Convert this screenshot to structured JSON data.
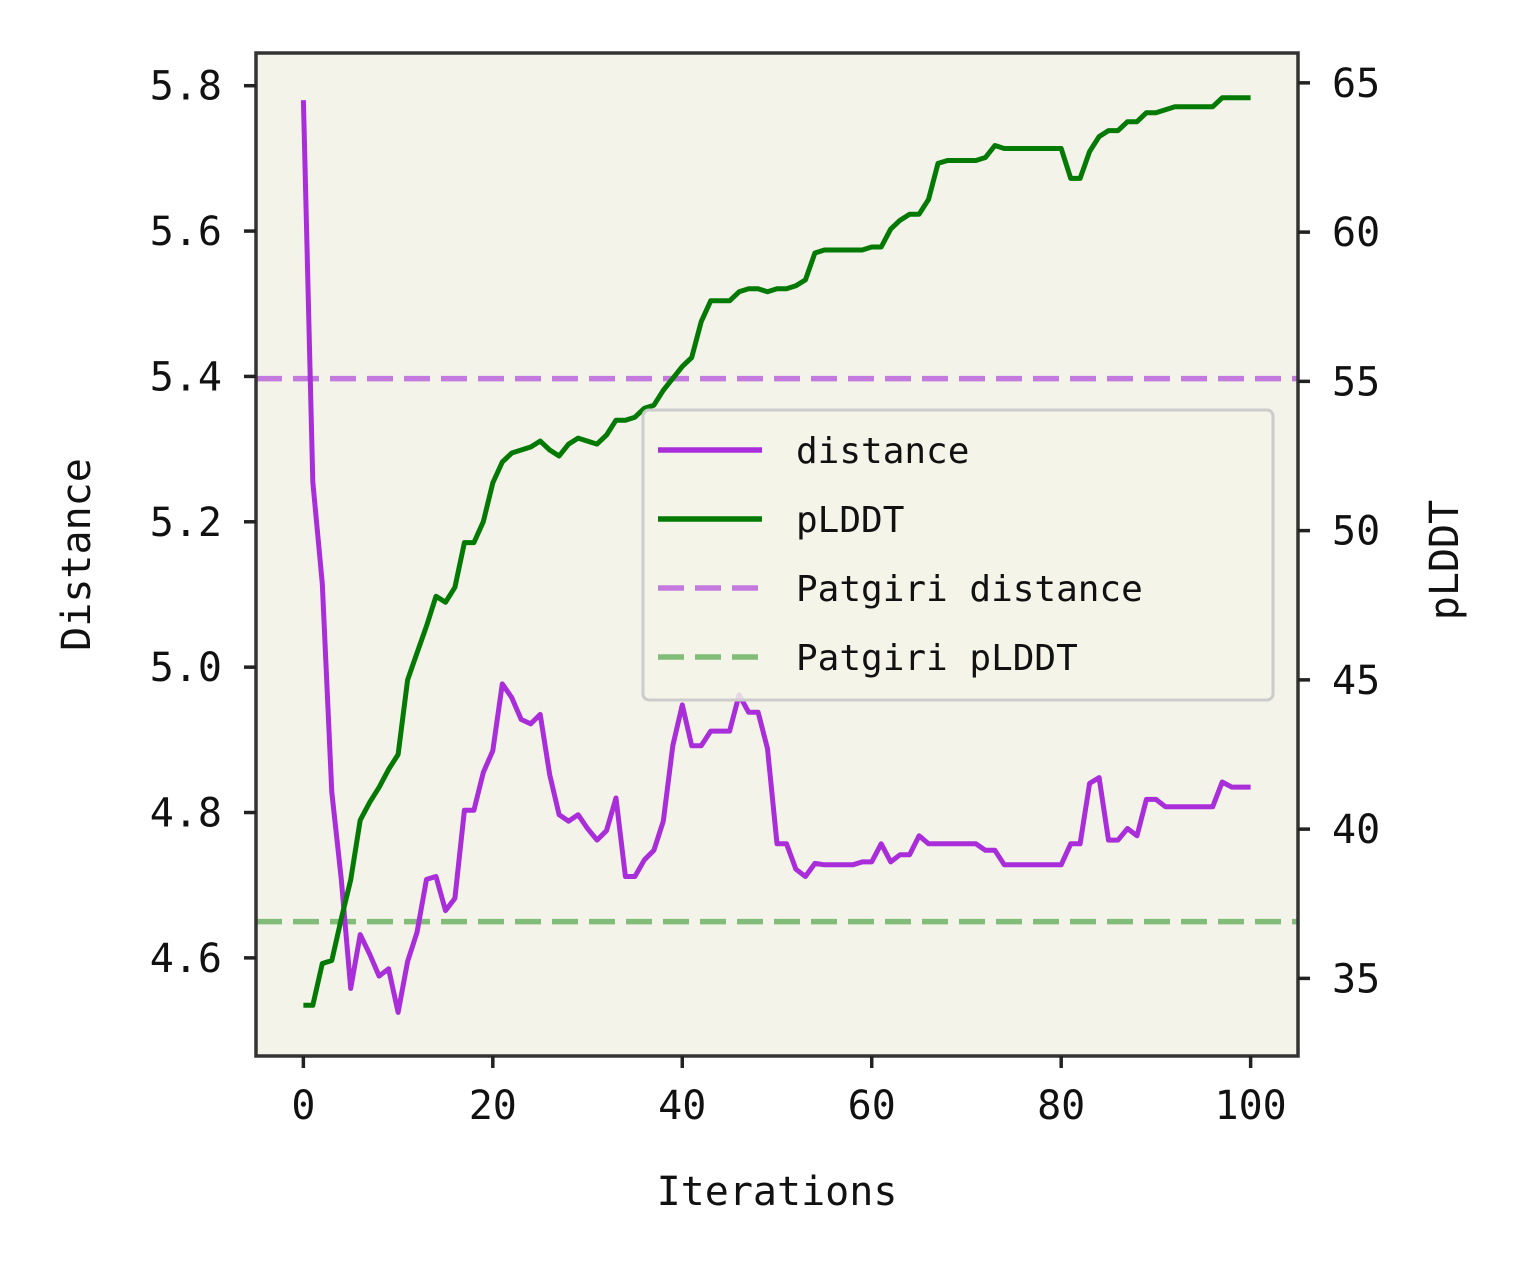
{
  "chart_data": {
    "type": "line",
    "xlabel": "Iterations",
    "ylabel_left": "Distance",
    "ylabel_right": "pLDDT",
    "xlim": [
      -5,
      105
    ],
    "ylim_left": [
      4.465,
      5.845
    ],
    "ylim_right": [
      32.4,
      66.0
    ],
    "xticks": [
      "0",
      "20",
      "40",
      "60",
      "80",
      "100"
    ],
    "yticks_left": [
      "4.6",
      "4.8",
      "5.0",
      "5.2",
      "5.4",
      "5.6",
      "5.8"
    ],
    "yticks_right": [
      "35",
      "40",
      "45",
      "50",
      "55",
      "60",
      "65"
    ],
    "grid": false,
    "legend_position": "center-right",
    "plot_background": "#f3f3e9",
    "series": [
      {
        "name": "distance",
        "axis": "left",
        "color": "#a92ed9",
        "style": "solid",
        "x": [
          0,
          1,
          2,
          3,
          4,
          5,
          6,
          7,
          8,
          9,
          10,
          11,
          12,
          13,
          14,
          15,
          16,
          17,
          18,
          19,
          20,
          21,
          22,
          23,
          24,
          25,
          26,
          27,
          28,
          29,
          30,
          31,
          32,
          33,
          34,
          35,
          36,
          37,
          38,
          39,
          40,
          41,
          42,
          43,
          44,
          45,
          46,
          47,
          48,
          49,
          50,
          51,
          52,
          53,
          54,
          55,
          56,
          57,
          58,
          59,
          60,
          61,
          62,
          63,
          64,
          65,
          66,
          67,
          68,
          69,
          70,
          71,
          72,
          73,
          74,
          75,
          76,
          77,
          78,
          79,
          80,
          81,
          82,
          83,
          84,
          85,
          86,
          87,
          88,
          89,
          90,
          91,
          92,
          93,
          94,
          95,
          96,
          97,
          98,
          99,
          100
        ],
        "values": [
          5.78,
          5.255,
          5.115,
          4.828,
          4.708,
          4.558,
          4.632,
          4.605,
          4.575,
          4.585,
          4.525,
          4.595,
          4.635,
          4.708,
          4.712,
          4.665,
          4.682,
          4.803,
          4.803,
          4.855,
          4.885,
          4.977,
          4.958,
          4.928,
          4.922,
          4.935,
          4.852,
          4.797,
          4.788,
          4.797,
          4.778,
          4.762,
          4.775,
          4.82,
          4.712,
          4.712,
          4.735,
          4.748,
          4.788,
          4.892,
          4.948,
          4.892,
          4.892,
          4.912,
          4.912,
          4.912,
          4.962,
          4.938,
          4.938,
          4.888,
          4.757,
          4.757,
          4.722,
          4.712,
          4.73,
          4.728,
          4.728,
          4.728,
          4.728,
          4.732,
          4.732,
          4.757,
          4.732,
          4.742,
          4.742,
          4.768,
          4.757,
          4.757,
          4.757,
          4.757,
          4.757,
          4.757,
          4.748,
          4.748,
          4.728,
          4.728,
          4.728,
          4.728,
          4.728,
          4.728,
          4.728,
          4.757,
          4.757,
          4.84,
          4.848,
          4.762,
          4.762,
          4.778,
          4.768,
          4.818,
          4.818,
          4.808,
          4.808,
          4.808,
          4.808,
          4.808,
          4.808,
          4.842,
          4.835,
          4.835,
          4.835
        ]
      },
      {
        "name": "pLDDT",
        "axis": "right",
        "color": "#047a04",
        "style": "solid",
        "x": [
          0,
          1,
          2,
          3,
          4,
          5,
          6,
          7,
          8,
          9,
          10,
          11,
          12,
          13,
          14,
          15,
          16,
          17,
          18,
          19,
          20,
          21,
          22,
          23,
          24,
          25,
          26,
          27,
          28,
          29,
          30,
          31,
          32,
          33,
          34,
          35,
          36,
          37,
          38,
          39,
          40,
          41,
          42,
          43,
          44,
          45,
          46,
          47,
          48,
          49,
          50,
          51,
          52,
          53,
          54,
          55,
          56,
          57,
          58,
          59,
          60,
          61,
          62,
          63,
          64,
          65,
          66,
          67,
          68,
          69,
          70,
          71,
          72,
          73,
          74,
          75,
          76,
          77,
          78,
          79,
          80,
          81,
          82,
          83,
          84,
          85,
          86,
          87,
          88,
          89,
          90,
          91,
          92,
          93,
          94,
          95,
          96,
          97,
          98,
          99,
          100
        ],
        "values": [
          34.1,
          34.1,
          35.5,
          35.6,
          37.0,
          38.3,
          40.3,
          40.9,
          41.4,
          42.0,
          42.5,
          45.0,
          45.9,
          46.8,
          47.8,
          47.6,
          48.1,
          49.6,
          49.6,
          50.3,
          51.6,
          52.3,
          52.6,
          52.7,
          52.8,
          53.0,
          52.7,
          52.5,
          52.9,
          53.1,
          53.0,
          52.9,
          53.2,
          53.7,
          53.7,
          53.8,
          54.1,
          54.2,
          54.7,
          55.1,
          55.5,
          55.8,
          57.0,
          57.7,
          57.7,
          57.7,
          58.0,
          58.1,
          58.1,
          58.0,
          58.1,
          58.1,
          58.2,
          58.4,
          59.3,
          59.4,
          59.4,
          59.4,
          59.4,
          59.4,
          59.5,
          59.5,
          60.1,
          60.4,
          60.6,
          60.6,
          61.1,
          62.3,
          62.4,
          62.4,
          62.4,
          62.4,
          62.5,
          62.9,
          62.8,
          62.8,
          62.8,
          62.8,
          62.8,
          62.8,
          62.8,
          61.8,
          61.8,
          62.7,
          63.2,
          63.4,
          63.4,
          63.7,
          63.7,
          64.0,
          64.0,
          64.1,
          64.2,
          64.2,
          64.2,
          64.2,
          64.2,
          64.5,
          64.5,
          64.5,
          64.5
        ]
      },
      {
        "name": "Patgiri distance",
        "axis": "left",
        "color": "#c479de",
        "style": "dashed",
        "value": 5.397
      },
      {
        "name": "Patgiri pLDDT",
        "axis": "right",
        "color": "#81bd78",
        "style": "dashed",
        "value": 36.9
      }
    ]
  }
}
